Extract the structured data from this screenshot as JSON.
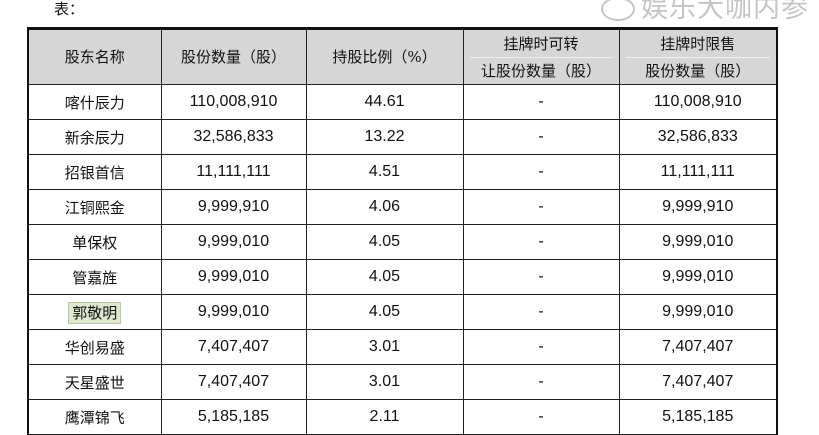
{
  "caption": "表：",
  "table": {
    "headers": [
      {
        "lines": [
          "股东名称"
        ]
      },
      {
        "lines": [
          "股份数量（股）"
        ]
      },
      {
        "lines": [
          "持股比例（%）"
        ]
      },
      {
        "lines": [
          "挂牌时可转",
          "让股份数量（股）"
        ]
      },
      {
        "lines": [
          "挂牌时限售",
          "股份数量（股）"
        ]
      }
    ],
    "rows": [
      [
        "喀什辰力",
        "110,008,910",
        "44.61",
        "-",
        "110,008,910"
      ],
      [
        "新余辰力",
        "32,586,833",
        "13.22",
        "-",
        "32,586,833"
      ],
      [
        "招银首信",
        "11,111,111",
        "4.51",
        "-",
        "11,111,111"
      ],
      [
        "江铜熙金",
        "9,999,910",
        "4.06",
        "-",
        "9,999,910"
      ],
      [
        "单保权",
        "9,999,010",
        "4.05",
        "-",
        "9,999,010"
      ],
      [
        "管嘉旌",
        "9,999,010",
        "4.05",
        "-",
        "9,999,010"
      ],
      [
        "郭敬明",
        "9,999,010",
        "4.05",
        "-",
        "9,999,010"
      ],
      [
        "华创易盛",
        "7,407,407",
        "3.01",
        "-",
        "7,407,407"
      ],
      [
        "天星盛世",
        "7,407,407",
        "3.01",
        "-",
        "7,407,407"
      ],
      [
        "鹰潭锦飞",
        "5,185,185",
        "2.11",
        "-",
        "5,185,185"
      ]
    ],
    "highlighted_row": 6,
    "highlight_color": "#dfe8cf",
    "header_bg": "#d6d6d6"
  },
  "watermark": {
    "text": "娱乐大咖内参",
    "icon": "wechat-icon"
  }
}
